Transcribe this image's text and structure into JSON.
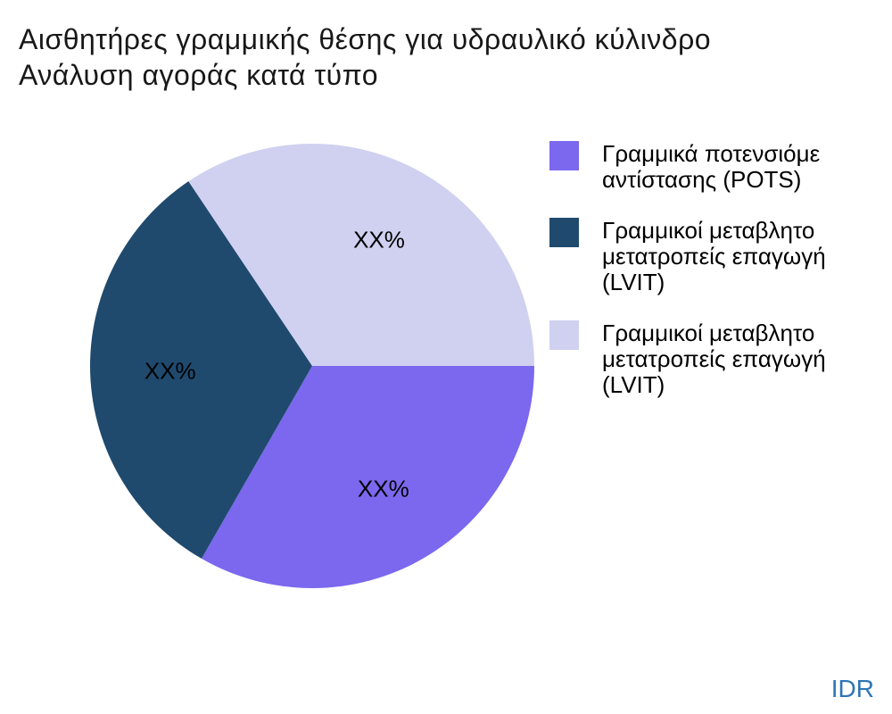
{
  "title": {
    "line1": "Αισθητήρες γραμμικής θέσης για υδραυλικό κύλινδρο",
    "line2": "Ανάλυση αγοράς κατά τύπο"
  },
  "watermark": "IDR",
  "colors": {
    "watermark": "#2E75B6",
    "title": "#181818",
    "background": "#FFFFFF"
  },
  "chart_data": {
    "type": "pie",
    "title": "Αισθητήρες γραμμικής θέσης για υδραυλικό κύλινδρο — Ανάλυση αγοράς κατά τύπο",
    "labels": [
      "Γραμμικά ποτενσιόμετρα αντίστασης (POTS)",
      "Γραμμικοί μεταβλητοί μετατροπείς επαγωγής (LVIT)",
      "Γραμμικοί μεταβλητοί μετατροπείς επαγωγής (LVIT)"
    ],
    "values": [
      33.3,
      32.3,
      34.4
    ],
    "value_labels": [
      "XX%",
      "XX%",
      "XX%"
    ],
    "colors": [
      "#7B68EE",
      "#1F4A6E",
      "#D0D0F0"
    ],
    "start_angle_deg": 0,
    "direction": "clockwise",
    "legend_position": "right"
  },
  "legend": {
    "items": [
      {
        "color": "#7B68EE",
        "lines": [
          "Γραμμικά ποτενσιόμε",
          "αντίστασης (POTS)"
        ]
      },
      {
        "color": "#1F4A6E",
        "lines": [
          "Γραμμικοί μεταβλητο",
          "μετατροπείς επαγωγή",
          "(LVIT)"
        ]
      },
      {
        "color": "#D0D0F0",
        "lines": [
          "Γραμμικοί μεταβλητο",
          "μετατροπείς επαγωγή",
          "(LVIT)"
        ]
      }
    ]
  }
}
